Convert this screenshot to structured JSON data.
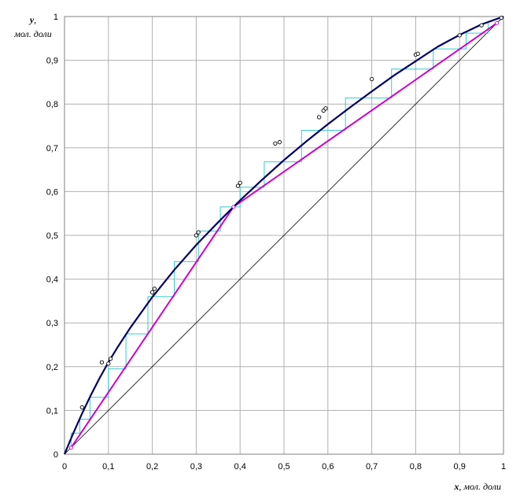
{
  "chart_data": {
    "type": "line",
    "title": "",
    "xlabel_symbol": "x",
    "xlabel_unit": ", мол. доли",
    "ylabel_symbol": "y",
    "ylabel_comma": ",",
    "ylabel_unit": "мол. доли",
    "xlim": [
      0,
      1
    ],
    "ylim": [
      0,
      1
    ],
    "grid": true,
    "x_ticks": [
      {
        "value": 0,
        "label": "0"
      },
      {
        "value": 0.1,
        "label": "0,1"
      },
      {
        "value": 0.2,
        "label": "0,2"
      },
      {
        "value": 0.3,
        "label": "0,3"
      },
      {
        "value": 0.4,
        "label": "0,4"
      },
      {
        "value": 0.5,
        "label": "0,5"
      },
      {
        "value": 0.6,
        "label": "0,6"
      },
      {
        "value": 0.7,
        "label": "0,7"
      },
      {
        "value": 0.8,
        "label": "0,8"
      },
      {
        "value": 0.9,
        "label": "0,9"
      },
      {
        "value": 1,
        "label": "1"
      }
    ],
    "y_ticks": [
      {
        "value": 0,
        "label": "0"
      },
      {
        "value": 0.1,
        "label": "0,1"
      },
      {
        "value": 0.2,
        "label": "0,2"
      },
      {
        "value": 0.3,
        "label": "0,3"
      },
      {
        "value": 0.4,
        "label": "0,4"
      },
      {
        "value": 0.5,
        "label": "0,5"
      },
      {
        "value": 0.6,
        "label": "0,6"
      },
      {
        "value": 0.7,
        "label": "0,7"
      },
      {
        "value": 0.8,
        "label": "0,8"
      },
      {
        "value": 0.9,
        "label": "0,9"
      },
      {
        "value": 1,
        "label": "1"
      }
    ],
    "colors": {
      "equilibrium": "#000066",
      "operating": "#cc00cc",
      "steps": "#33cccc",
      "diagonal": "#000000",
      "grid": "#b0b0b0",
      "frame": "#808080"
    },
    "series": [
      {
        "role": "equilibrium",
        "x": [
          0,
          0.02,
          0.04,
          0.06,
          0.08,
          0.1,
          0.12,
          0.15,
          0.2,
          0.25,
          0.3,
          0.35,
          0.4,
          0.45,
          0.5,
          0.55,
          0.6,
          0.65,
          0.7,
          0.75,
          0.8,
          0.85,
          0.9,
          0.95,
          1
        ],
        "y": [
          0,
          0.048,
          0.093,
          0.135,
          0.174,
          0.21,
          0.243,
          0.289,
          0.359,
          0.421,
          0.478,
          0.53,
          0.58,
          0.627,
          0.672,
          0.714,
          0.754,
          0.792,
          0.829,
          0.865,
          0.898,
          0.931,
          0.958,
          0.982,
          1
        ]
      },
      {
        "role": "operating",
        "x": [
          0.015,
          0.385,
          0.985
        ],
        "y": [
          0.015,
          0.565,
          0.985
        ]
      },
      {
        "role": "diagonal",
        "x": [
          0,
          1
        ],
        "y": [
          0,
          1
        ]
      },
      {
        "role": "experimental",
        "x": [
          0.04,
          0.085,
          0.1,
          0.105,
          0.2,
          0.205,
          0.3,
          0.305,
          0.395,
          0.4,
          0.48,
          0.49,
          0.58,
          0.59,
          0.595,
          0.7,
          0.8,
          0.805,
          0.9,
          0.95,
          0.995
        ],
        "y": [
          0.107,
          0.21,
          0.207,
          0.218,
          0.37,
          0.378,
          0.5,
          0.507,
          0.613,
          0.62,
          0.71,
          0.713,
          0.77,
          0.785,
          0.79,
          0.857,
          0.913,
          0.915,
          0.957,
          0.98,
          0.997
        ]
      }
    ],
    "steps": [
      [
        0.015,
        0.015
      ],
      [
        0.015,
        0.048
      ],
      [
        0.035,
        0.048
      ],
      [
        0.035,
        0.08
      ],
      [
        0.058,
        0.08
      ],
      [
        0.058,
        0.13
      ],
      [
        0.1,
        0.13
      ],
      [
        0.1,
        0.195
      ],
      [
        0.14,
        0.195
      ],
      [
        0.14,
        0.275
      ],
      [
        0.19,
        0.275
      ],
      [
        0.19,
        0.36
      ],
      [
        0.25,
        0.36
      ],
      [
        0.25,
        0.44
      ],
      [
        0.305,
        0.44
      ],
      [
        0.305,
        0.51
      ],
      [
        0.355,
        0.51
      ],
      [
        0.355,
        0.565
      ],
      [
        0.4,
        0.565
      ],
      [
        0.4,
        0.61
      ],
      [
        0.455,
        0.61
      ],
      [
        0.455,
        0.668
      ],
      [
        0.54,
        0.668
      ],
      [
        0.54,
        0.74
      ],
      [
        0.64,
        0.74
      ],
      [
        0.64,
        0.814
      ],
      [
        0.745,
        0.814
      ],
      [
        0.745,
        0.88
      ],
      [
        0.84,
        0.88
      ],
      [
        0.84,
        0.926
      ],
      [
        0.915,
        0.926
      ],
      [
        0.915,
        0.962
      ],
      [
        0.965,
        0.962
      ],
      [
        0.965,
        0.985
      ]
    ]
  }
}
